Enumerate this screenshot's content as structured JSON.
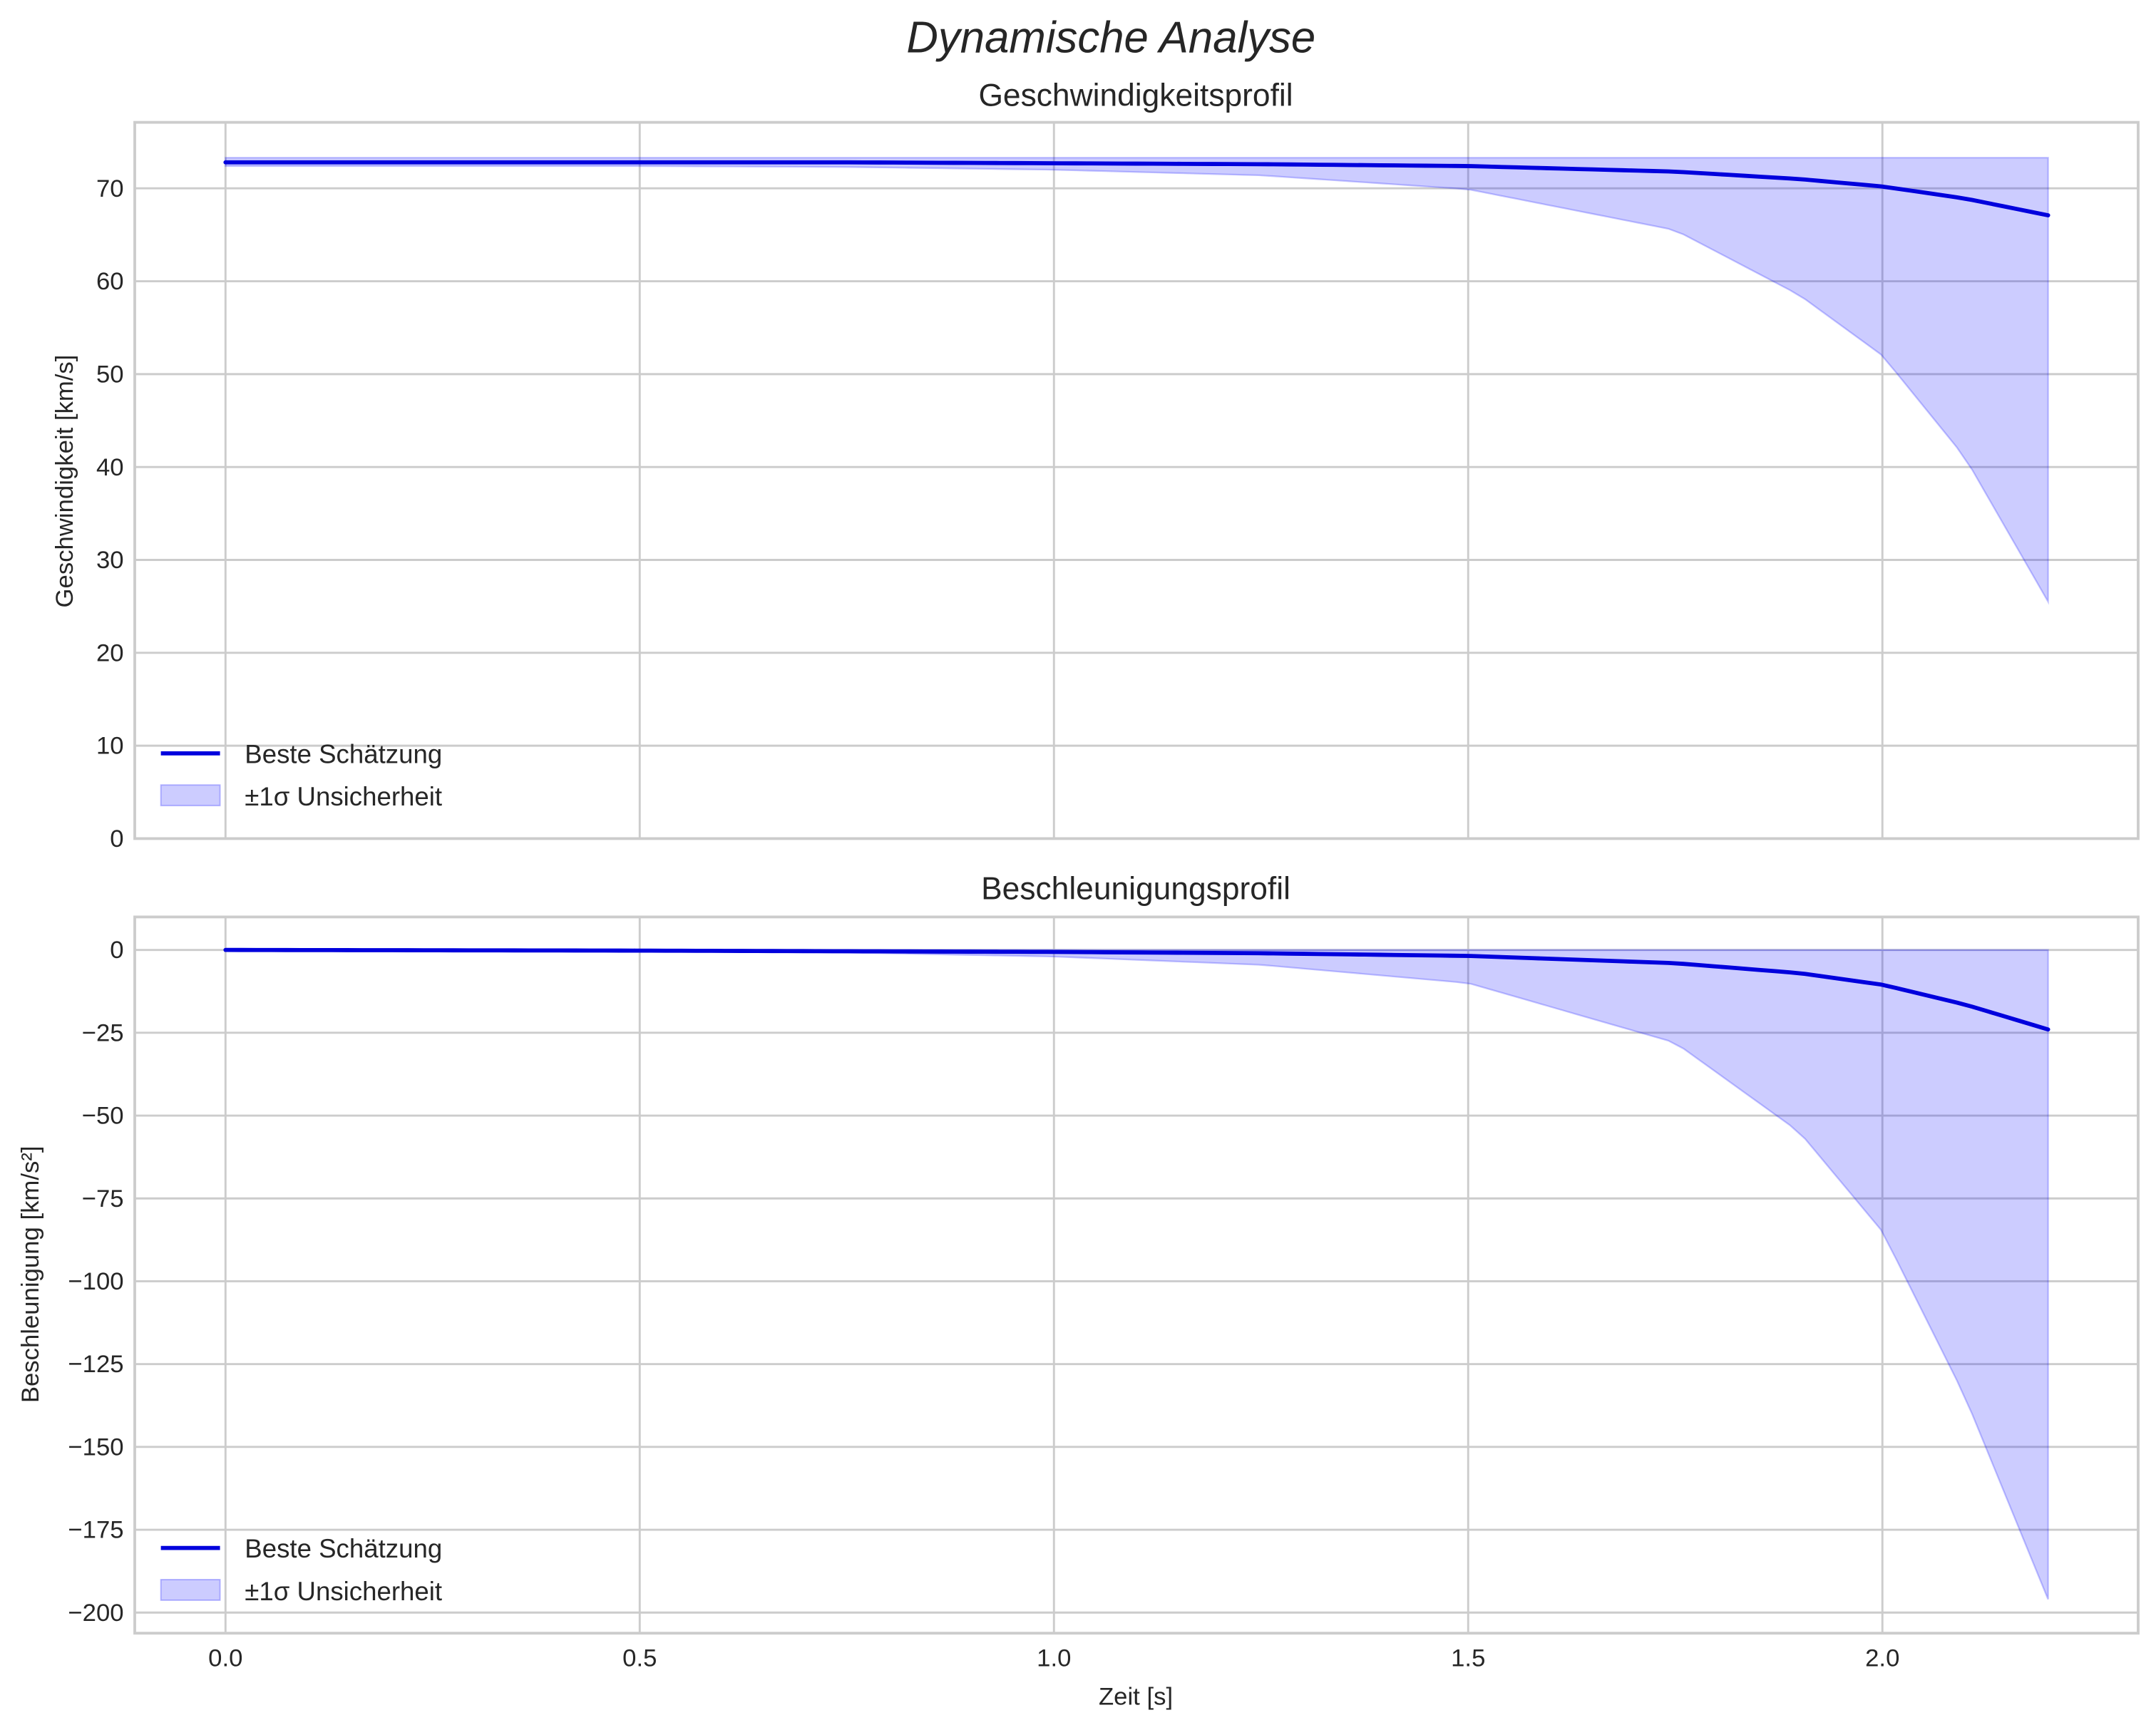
{
  "figure": {
    "title": "Dynamische Analyse",
    "xlabel": "Zeit [s]"
  },
  "colors": {
    "line": "#0000dd",
    "band_fill": "#0000ff",
    "grid": "#cccccc",
    "text": "#262626"
  },
  "panels": [
    {
      "title": "Geschwindigkeitsprofil",
      "ylabel": "Geschwindigkeit [km/s]",
      "yticks": [
        "0",
        "10",
        "20",
        "30",
        "40",
        "50",
        "60",
        "70"
      ],
      "legend": [
        "Beste Schätzung",
        "±1σ Unsicherheit"
      ]
    },
    {
      "title": "Beschleunigungsprofil",
      "ylabel": "Beschleunigung [km/s²]",
      "yticks": [
        "0",
        "−25",
        "−50",
        "−75",
        "−100",
        "−125",
        "−150",
        "−175",
        "−200"
      ],
      "legend": [
        "Beste Schätzung",
        "±1σ Unsicherheit"
      ]
    }
  ],
  "xticks": [
    "0.0",
    "0.5",
    "1.0",
    "1.5",
    "2.0"
  ],
  "chart_data": [
    {
      "type": "line",
      "title": "Geschwindigkeitsprofil",
      "xlabel": "Zeit [s]",
      "ylabel": "Geschwindigkeit [km/s]",
      "xlim": [
        -0.11,
        2.31
      ],
      "ylim": [
        0,
        77
      ],
      "grid": true,
      "legend_position": "lower left",
      "x": [
        0.0,
        0.25,
        0.5,
        0.75,
        1.0,
        1.25,
        1.5,
        1.75,
        1.9,
        2.0,
        2.1,
        2.2
      ],
      "series": [
        {
          "name": "Beste Schätzung",
          "values": [
            72.8,
            72.8,
            72.8,
            72.8,
            72.7,
            72.6,
            72.4,
            71.8,
            71.0,
            70.2,
            68.9,
            67.1
          ]
        },
        {
          "name": "±1σ Unsicherheit (untere Grenze)",
          "values": [
            72.4,
            72.4,
            72.4,
            72.3,
            72.0,
            71.4,
            69.9,
            65.5,
            58.5,
            52.0,
            41.0,
            25.5
          ]
        },
        {
          "name": "±1σ Unsicherheit (obere Grenze)",
          "values": [
            73.3,
            73.3,
            73.3,
            73.3,
            73.3,
            73.3,
            73.3,
            73.3,
            73.3,
            73.3,
            73.3,
            73.3
          ]
        }
      ]
    },
    {
      "type": "line",
      "title": "Beschleunigungsprofil",
      "xlabel": "Zeit [s]",
      "ylabel": "Beschleunigung [km/s²]",
      "xlim": [
        -0.11,
        2.31
      ],
      "ylim": [
        -207,
        10
      ],
      "grid": true,
      "legend_position": "lower left",
      "x": [
        0.0,
        0.25,
        0.5,
        0.75,
        1.0,
        1.25,
        1.5,
        1.75,
        1.9,
        2.0,
        2.1,
        2.2
      ],
      "series": [
        {
          "name": "Beste Schätzung",
          "values": [
            0.0,
            -0.1,
            -0.2,
            -0.4,
            -0.6,
            -1.0,
            -1.8,
            -4.0,
            -7.0,
            -10.5,
            -16.5,
            -24.0
          ]
        },
        {
          "name": "±1σ Unsicherheit (untere Grenze)",
          "values": [
            0.0,
            -0.1,
            -0.3,
            -0.8,
            -2.0,
            -4.5,
            -10.0,
            -28.0,
            -55.0,
            -85.0,
            -135.0,
            -196.0
          ]
        },
        {
          "name": "±1σ Unsicherheit (obere Grenze)",
          "values": [
            0,
            0,
            0,
            0,
            0,
            0,
            0,
            0,
            0,
            0,
            0,
            0
          ]
        }
      ]
    }
  ]
}
